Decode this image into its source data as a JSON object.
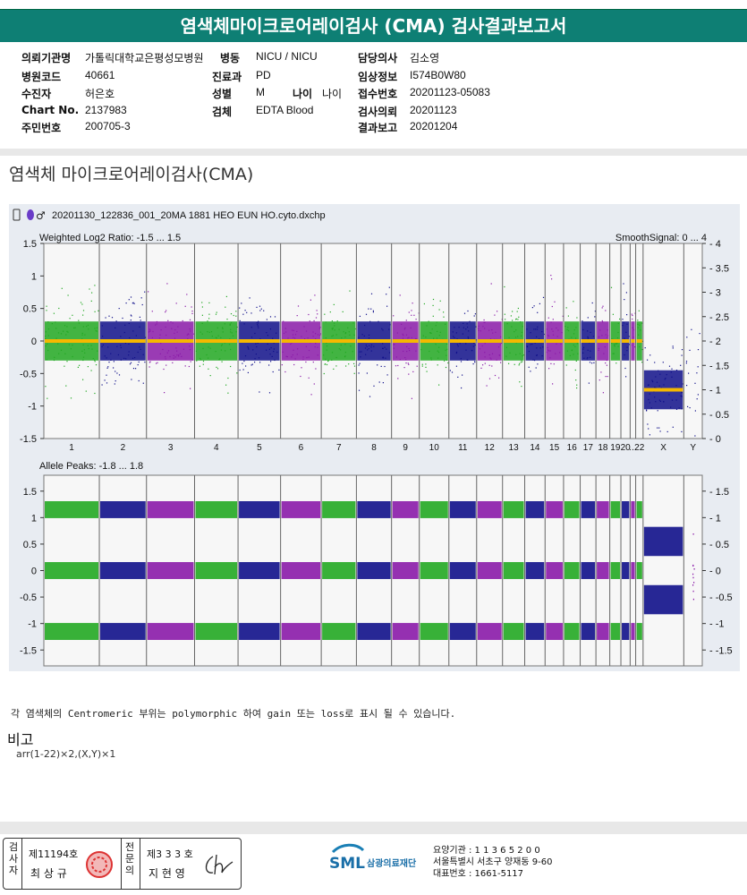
{
  "header": {
    "title": "염색체마이크로어레이검사 (CMA) 검사결과보고서"
  },
  "info": {
    "col1": [
      {
        "label": "의뢰기관명",
        "value": "가톨릭대학교은평성모병원"
      },
      {
        "label": "병원코드",
        "value": "40661"
      },
      {
        "label": "수진자",
        "value": "허은호"
      },
      {
        "label": "Chart No.",
        "value": "2137983"
      },
      {
        "label": "주민번호",
        "value": "200705-3"
      }
    ],
    "col2": [
      {
        "label": "병동",
        "value": "NICU / NICU"
      },
      {
        "label": "진료과",
        "value": "PD"
      },
      {
        "label": "성별",
        "value": "M"
      },
      {
        "label": "검체",
        "value": "EDTA Blood"
      }
    ],
    "age": {
      "label": "나이",
      "value": "나이"
    },
    "col3": [
      {
        "label": "담당의사",
        "value": "김소영"
      },
      {
        "label": "임상정보",
        "value": "I574B0W80"
      },
      {
        "label": "접수번호",
        "value": "20201123-05083"
      },
      {
        "label": "검사의뢰",
        "value": "20201123"
      },
      {
        "label": "결과보고",
        "value": "20201204"
      }
    ]
  },
  "section_title": "염색체 마이크로어레이검사(CMA)",
  "chart_data": {
    "type": "scatter",
    "file_title": "20201130_122836_001_20MA 1881 HEO EUN HO.cyto.dxchp",
    "chromosomes": [
      "1",
      "2",
      "3",
      "4",
      "5",
      "6",
      "7",
      "8",
      "9",
      "10",
      "11",
      "12",
      "13",
      "14",
      "15",
      "16",
      "17",
      "18",
      "19",
      "20",
      "...",
      "22",
      "X",
      "Y"
    ],
    "series_colors": {
      "green": "#22a822",
      "navy": "#10108a",
      "purple": "#8a1aa8",
      "smooth": "#f5b800"
    },
    "top_panel": {
      "title": "Weighted Log2 Ratio: -1.5 ... 1.5",
      "right_title": "SmoothSignal: 0 ... 4",
      "yticks": [
        "1.5",
        "1",
        "0.5",
        "0",
        "-0.5",
        "-1",
        "-1.5"
      ],
      "ylim": [
        -1.5,
        1.5
      ],
      "right_yticks": [
        "4",
        "3.5",
        "3",
        "2.5",
        "2",
        "1.5",
        "1",
        "0.5",
        "0"
      ],
      "right_ylim": [
        0,
        4
      ],
      "smooth_log2": {
        "autosomes": 0,
        "X": -0.75
      },
      "smooth_signal": {
        "autosomes": 2,
        "X": 1
      }
    },
    "bottom_panel": {
      "title": "Allele Peaks: -1.8 ... 1.8",
      "yticks": [
        "1.5",
        "1",
        "0.5",
        "0",
        "-0.5",
        "-1",
        "-1.5"
      ],
      "right_yticks": [
        "1.5",
        "1",
        "0.5",
        "0",
        "-0.5",
        "-1",
        "-1.5"
      ],
      "ylim": [
        -1.8,
        1.8
      ],
      "autosome_peaks": [
        1.15,
        0,
        -1.15
      ],
      "x_peaks": [
        0.55,
        -0.55
      ]
    }
  },
  "note": "각 염색체의 Centromeric 부위는 polymorphic 하여 gain 또는 loss로 표시 될 수 있습니다.",
  "remarks": {
    "title": "비고",
    "body": "arr(1-22)×2,(X,Y)×1"
  },
  "footer": {
    "reviewer_label": "검사자",
    "reviewer_no": "제11194호",
    "reviewer_name": "최 상 규",
    "doctor_label": "전문의",
    "doctor_no": "제3 3 3 호",
    "doctor_name": "지 현 영",
    "logo_text": "SML",
    "org_name": "삼광의료재단",
    "contact": [
      "요양기관 : 1 1 3 6 5 2 0 0",
      "서울특별시 서초구 양재동 9-60",
      "대표번호 : 1661-5117"
    ]
  }
}
